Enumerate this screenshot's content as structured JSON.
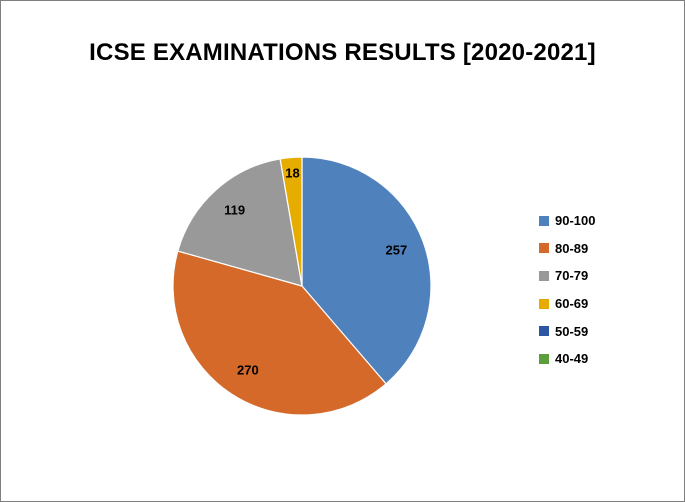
{
  "chart_data": {
    "type": "pie",
    "title": "ICSE EXAMINATIONS RESULTS [2020-2021]",
    "categories": [
      "90-100",
      "80-89",
      "70-79",
      "60-69",
      "50-59",
      "40-49"
    ],
    "values": [
      257,
      270,
      119,
      18,
      0,
      0
    ],
    "colors": [
      "#4f81bd",
      "#d4692a",
      "#999999",
      "#e6ac00",
      "#2e57a3",
      "#5d9e3c"
    ],
    "legend_position": "right",
    "data_labels": true
  }
}
